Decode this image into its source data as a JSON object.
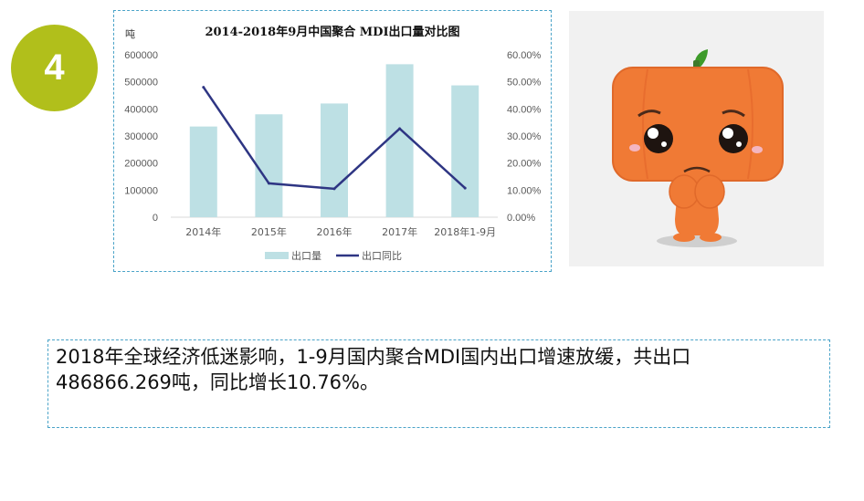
{
  "badge": {
    "number": "4"
  },
  "chart_data": {
    "type": "bar",
    "title": "2014-2018年9月中国聚合 MDI出口量对比图",
    "y_unit": "吨",
    "categories": [
      "2014年",
      "2015年",
      "2016年",
      "2017年",
      "2018年1-9月"
    ],
    "series": [
      {
        "name": "出口量",
        "type": "bar",
        "axis": "left",
        "color": "#bde0e4",
        "values": [
          335000,
          380000,
          420000,
          565000,
          486866.269
        ]
      },
      {
        "name": "出口同比",
        "type": "line",
        "axis": "right",
        "color": "#2e3583",
        "values": [
          48.0,
          12.5,
          10.5,
          32.7,
          10.76
        ]
      }
    ],
    "y_left": {
      "min": 0,
      "max": 600000,
      "step": 100000,
      "ticks": [
        "0",
        "100000",
        "200000",
        "300000",
        "400000",
        "500000",
        "600000"
      ]
    },
    "y_right": {
      "min": 0,
      "max": 60,
      "step": 10,
      "ticks": [
        "0.00%",
        "10.00%",
        "20.00%",
        "30.00%",
        "40.00%",
        "50.00%",
        "60.00%"
      ]
    },
    "legend_position": "bottom",
    "grid": false
  },
  "mascot": {
    "icon": "crying-pumpkin-mascot",
    "colors": {
      "body": "#f07a35",
      "stem": "#3e9b2a",
      "shadow": "#cfcfcf"
    }
  },
  "summary": {
    "line1": "2018年全球经济低迷影响，1-9月国内聚合MDI国内出口增速放缓，共出口",
    "line2": "486866.269吨，同比增长10.76%。"
  }
}
